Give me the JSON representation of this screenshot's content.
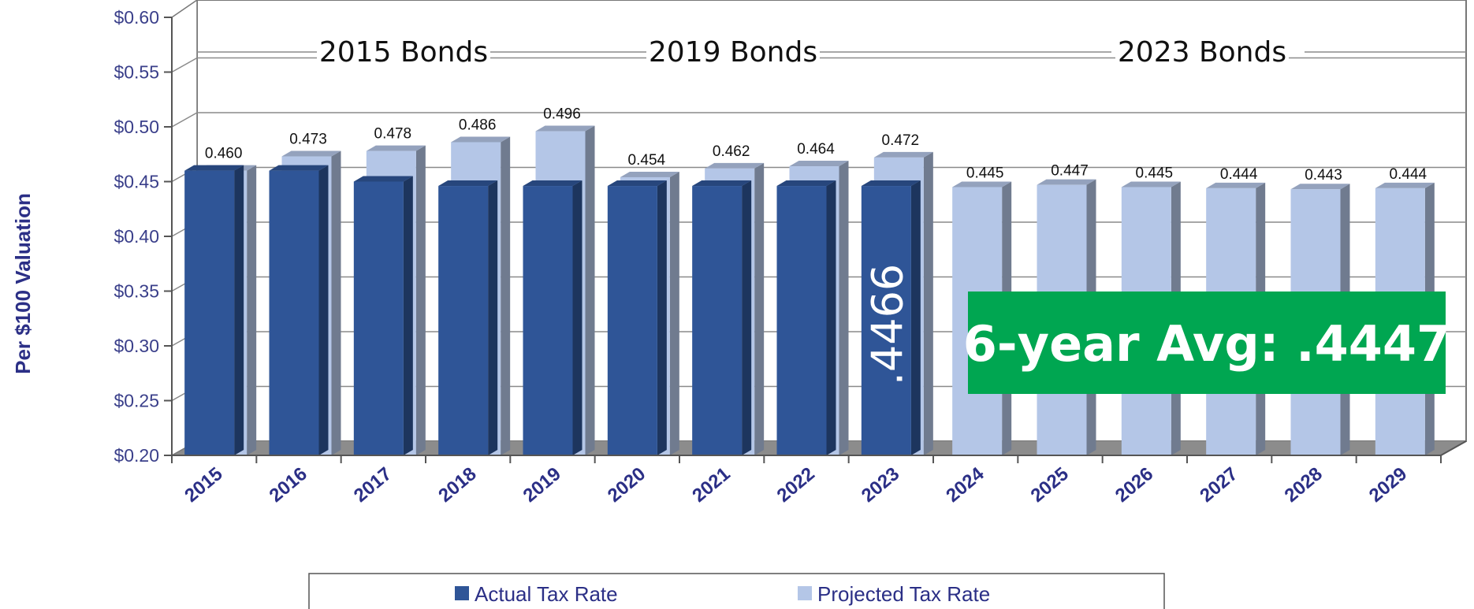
{
  "chart_data": {
    "type": "bar",
    "title": "",
    "xlabel": "",
    "ylabel": "Per $100 Valuation",
    "ylim": [
      0.2,
      0.6
    ],
    "y_ticks": [
      "$0.20",
      "$0.25",
      "$0.30",
      "$0.35",
      "$0.40",
      "$0.45",
      "$0.50",
      "$0.55",
      "$0.60"
    ],
    "categories": [
      "2015",
      "2016",
      "2017",
      "2018",
      "2019",
      "2020",
      "2021",
      "2022",
      "2023",
      "2024",
      "2025",
      "2026",
      "2027",
      "2028",
      "2029"
    ],
    "series": [
      {
        "name": "Actual Tax Rate",
        "color": "#2f5597",
        "values": [
          0.46,
          0.46,
          0.45,
          0.446,
          0.446,
          0.446,
          0.446,
          0.446,
          0.446,
          null,
          null,
          null,
          null,
          null,
          null
        ]
      },
      {
        "name": "Projected Tax Rate",
        "color": "#b4c6e7",
        "values": [
          0.46,
          0.473,
          0.478,
          0.486,
          0.496,
          0.454,
          0.462,
          0.464,
          0.472,
          0.445,
          0.447,
          0.445,
          0.444,
          0.443,
          0.444
        ]
      }
    ],
    "data_labels": [
      "0.460",
      "0.473",
      "0.478",
      "0.486",
      "0.496",
      "0.454",
      "0.462",
      "0.464",
      "0.472",
      "0.445",
      "0.447",
      "0.445",
      "0.444",
      "0.443",
      "0.444"
    ],
    "annotations": {
      "bonds": [
        "2015 Bonds",
        "2019 Bonds",
        "2023 Bonds"
      ],
      "bar_2023_label": ".4466",
      "average_box": "6-year Avg: .4447",
      "average_box_color": "#00a651"
    },
    "grid": true,
    "legend": "bottom"
  }
}
